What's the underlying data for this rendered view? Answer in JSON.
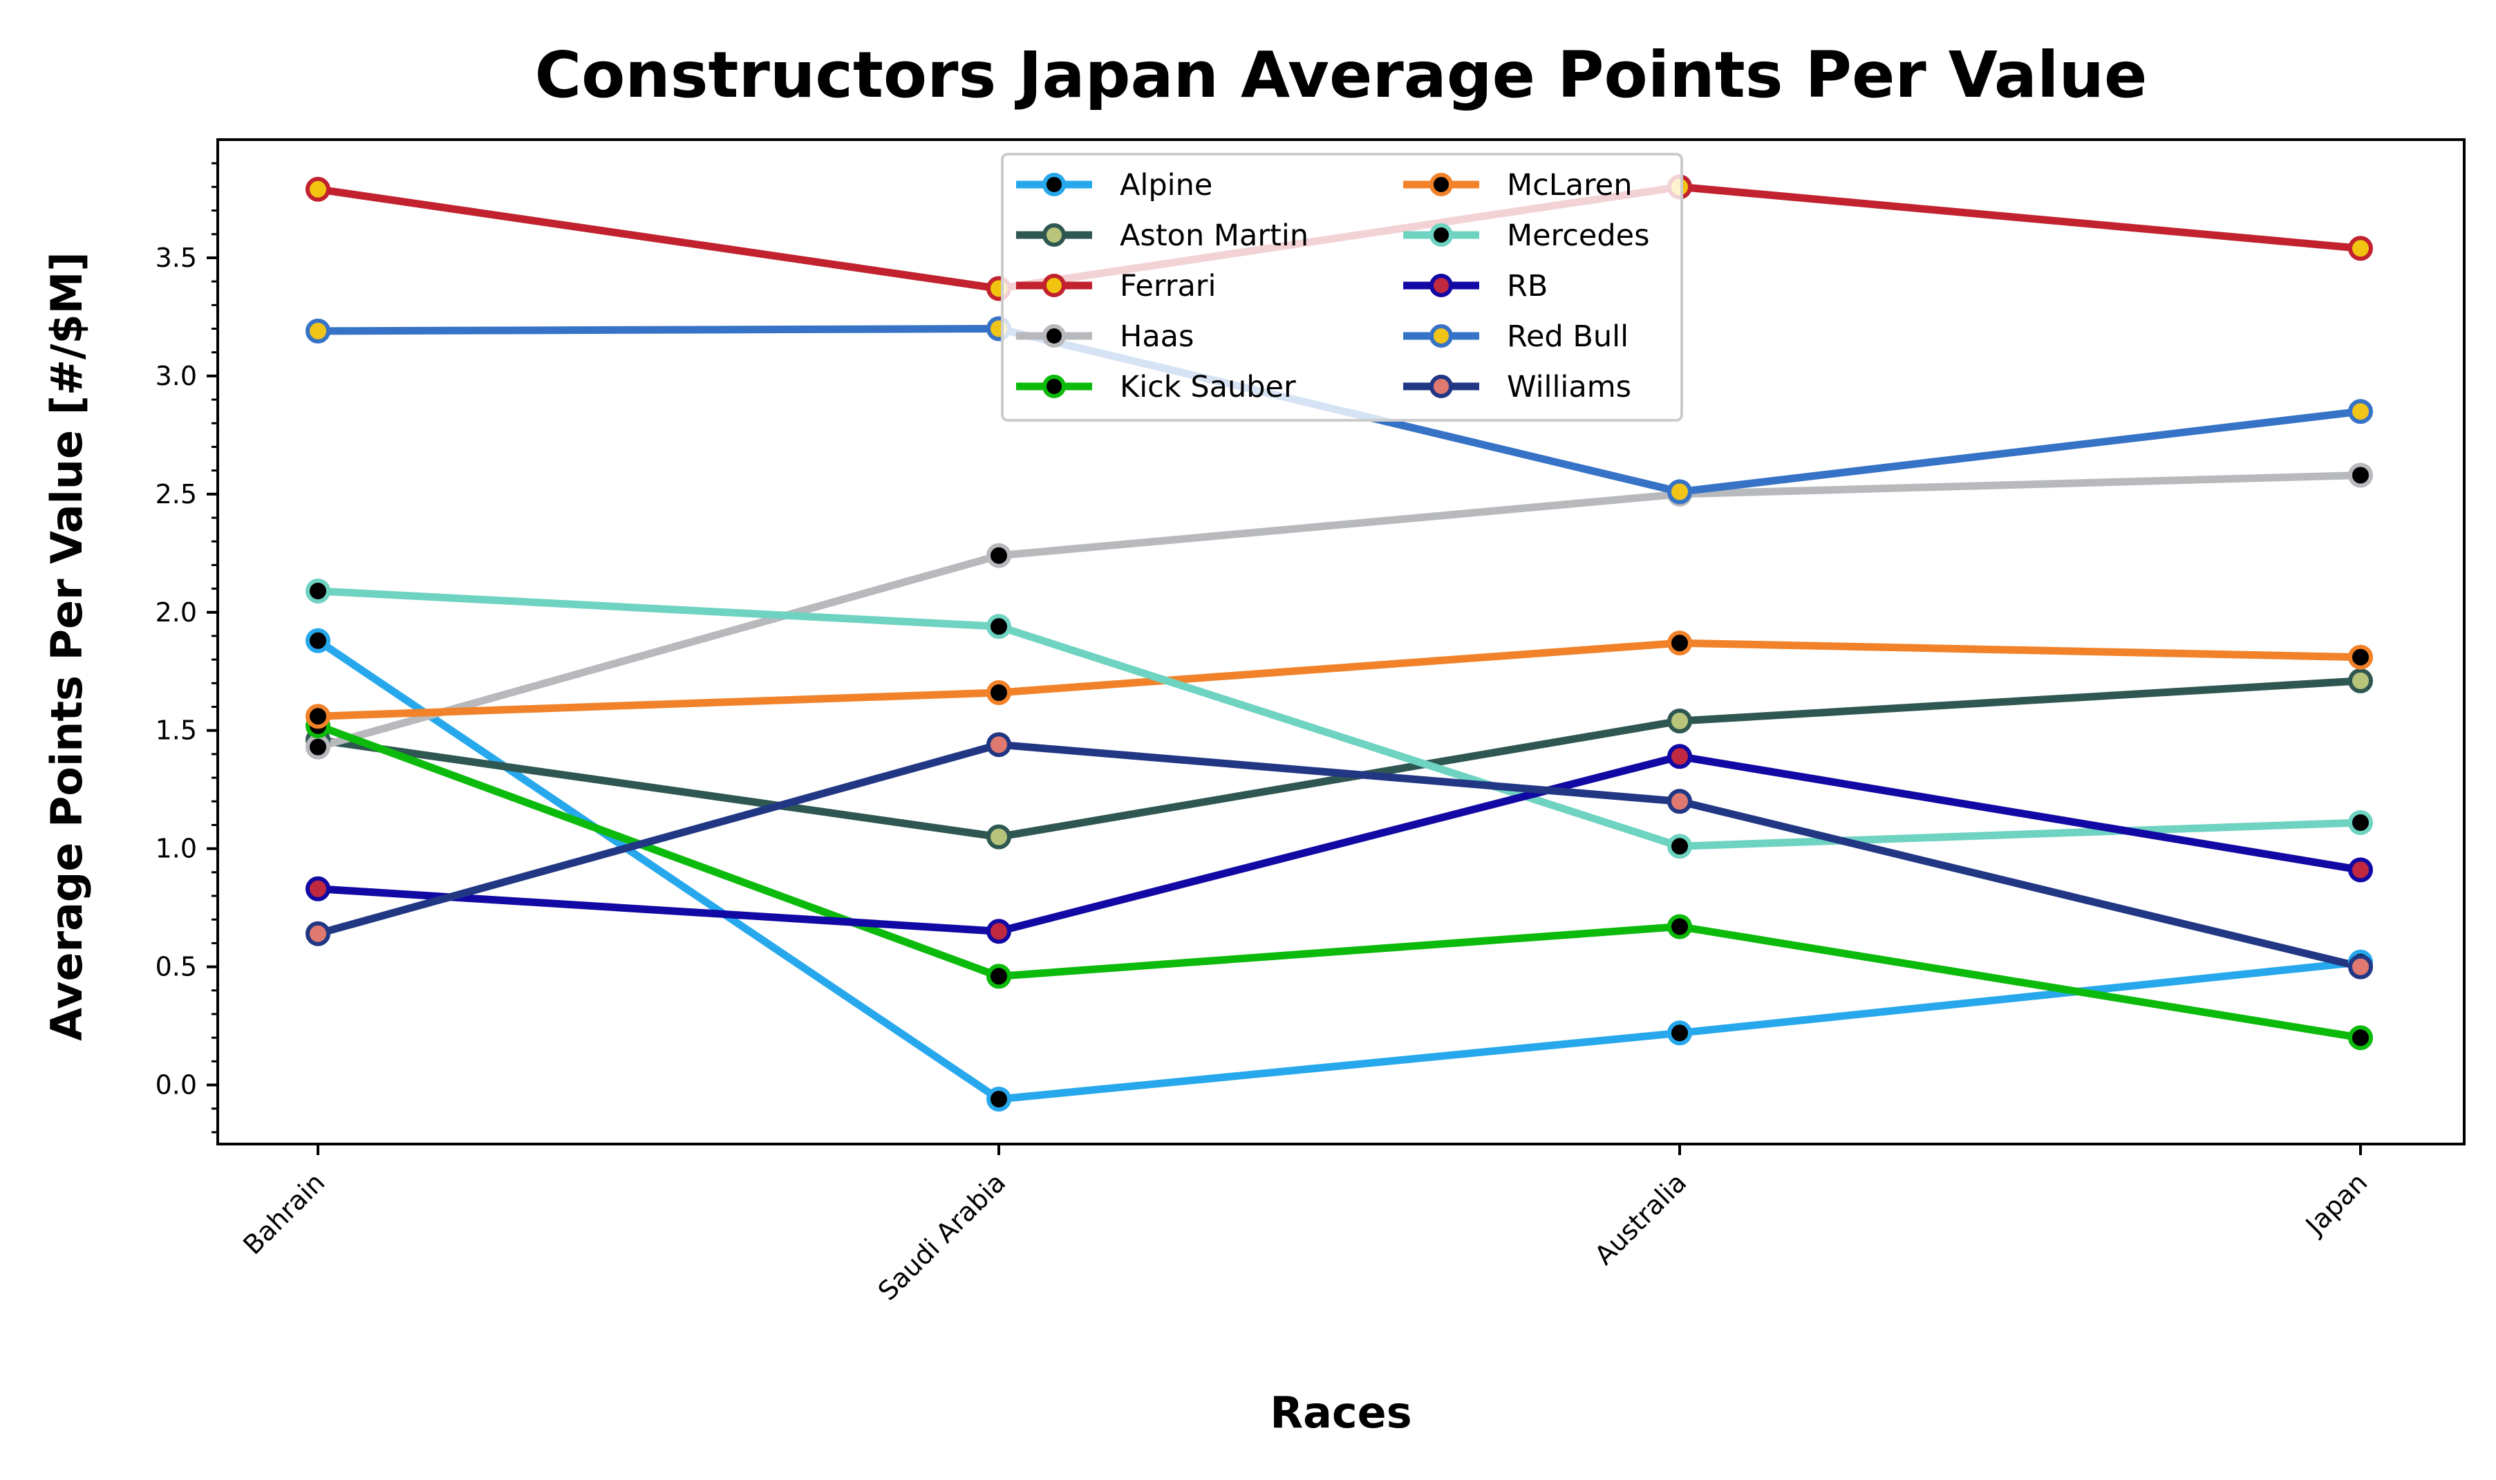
{
  "chart_data": {
    "type": "line",
    "title": "Constructors Japan Average Points Per Value",
    "xlabel": "Races",
    "ylabel": "Average Points Per Value [#/$M]",
    "categories": [
      "Bahrain",
      "Saudi Arabia",
      "Australia",
      "Japan"
    ],
    "ylim": [
      -0.25,
      4.0
    ],
    "yticks": [
      "0.0",
      "0.5",
      "1.0",
      "1.5",
      "2.0",
      "2.5",
      "3.0",
      "3.5"
    ],
    "grid": false,
    "legend_position": "top-center",
    "legend_columns": 2,
    "series": [
      {
        "name": "Alpine",
        "color": "#27a8ec",
        "marker_fill": "#000000",
        "values": [
          1.88,
          -0.06,
          0.22,
          0.52
        ]
      },
      {
        "name": "Aston Martin",
        "color": "#2f5751",
        "marker_fill": "#b7c47a",
        "values": [
          1.46,
          1.05,
          1.54,
          1.71
        ]
      },
      {
        "name": "Ferrari",
        "color": "#c1222e",
        "marker_fill": "#f1c50f",
        "values": [
          3.79,
          3.37,
          3.8,
          3.54
        ]
      },
      {
        "name": "Haas",
        "color": "#b7b9bc",
        "marker_fill": "#000000",
        "values": [
          1.43,
          2.24,
          2.5,
          2.58
        ]
      },
      {
        "name": "Kick Sauber",
        "color": "#0cba0b",
        "marker_fill": "#000000",
        "values": [
          1.52,
          0.46,
          0.67,
          0.2
        ]
      },
      {
        "name": "McLaren",
        "color": "#f2822a",
        "marker_fill": "#000000",
        "values": [
          1.56,
          1.66,
          1.87,
          1.81
        ]
      },
      {
        "name": "Mercedes",
        "color": "#6fd3c1",
        "marker_fill": "#000000",
        "values": [
          2.09,
          1.94,
          1.01,
          1.11
        ]
      },
      {
        "name": "RB",
        "color": "#1208a3",
        "marker_fill": "#c0293f",
        "values": [
          0.83,
          0.65,
          1.39,
          0.91
        ]
      },
      {
        "name": "Red Bull",
        "color": "#3672c6",
        "marker_fill": "#f0c419",
        "values": [
          3.19,
          3.2,
          2.51,
          2.85
        ]
      },
      {
        "name": "Williams",
        "color": "#213784",
        "marker_fill": "#e07a70",
        "values": [
          0.64,
          1.44,
          1.2,
          0.5
        ]
      }
    ]
  }
}
